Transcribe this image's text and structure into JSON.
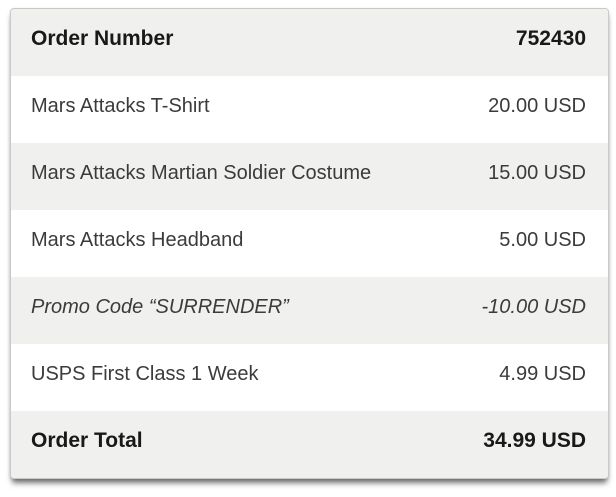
{
  "order": {
    "rows": [
      {
        "label": "Order Number",
        "value": "752430"
      },
      {
        "label": "Mars Attacks T-Shirt",
        "value": "20.00 USD"
      },
      {
        "label": "Mars Attacks Martian Soldier Costume",
        "value": "15.00 USD"
      },
      {
        "label": "Mars Attacks Headband",
        "value": "5.00 USD"
      },
      {
        "label": "Promo Code “SURRENDER”",
        "value": "-10.00 USD"
      },
      {
        "label": "USPS First Class 1 Week",
        "value": "4.99 USD"
      },
      {
        "label": "Order Total",
        "value": "34.99 USD"
      }
    ]
  },
  "colors": {
    "shade": "#f0f0ee",
    "border": "#c9c9c7",
    "text": "#3b3b3a",
    "heading": "#191919"
  }
}
